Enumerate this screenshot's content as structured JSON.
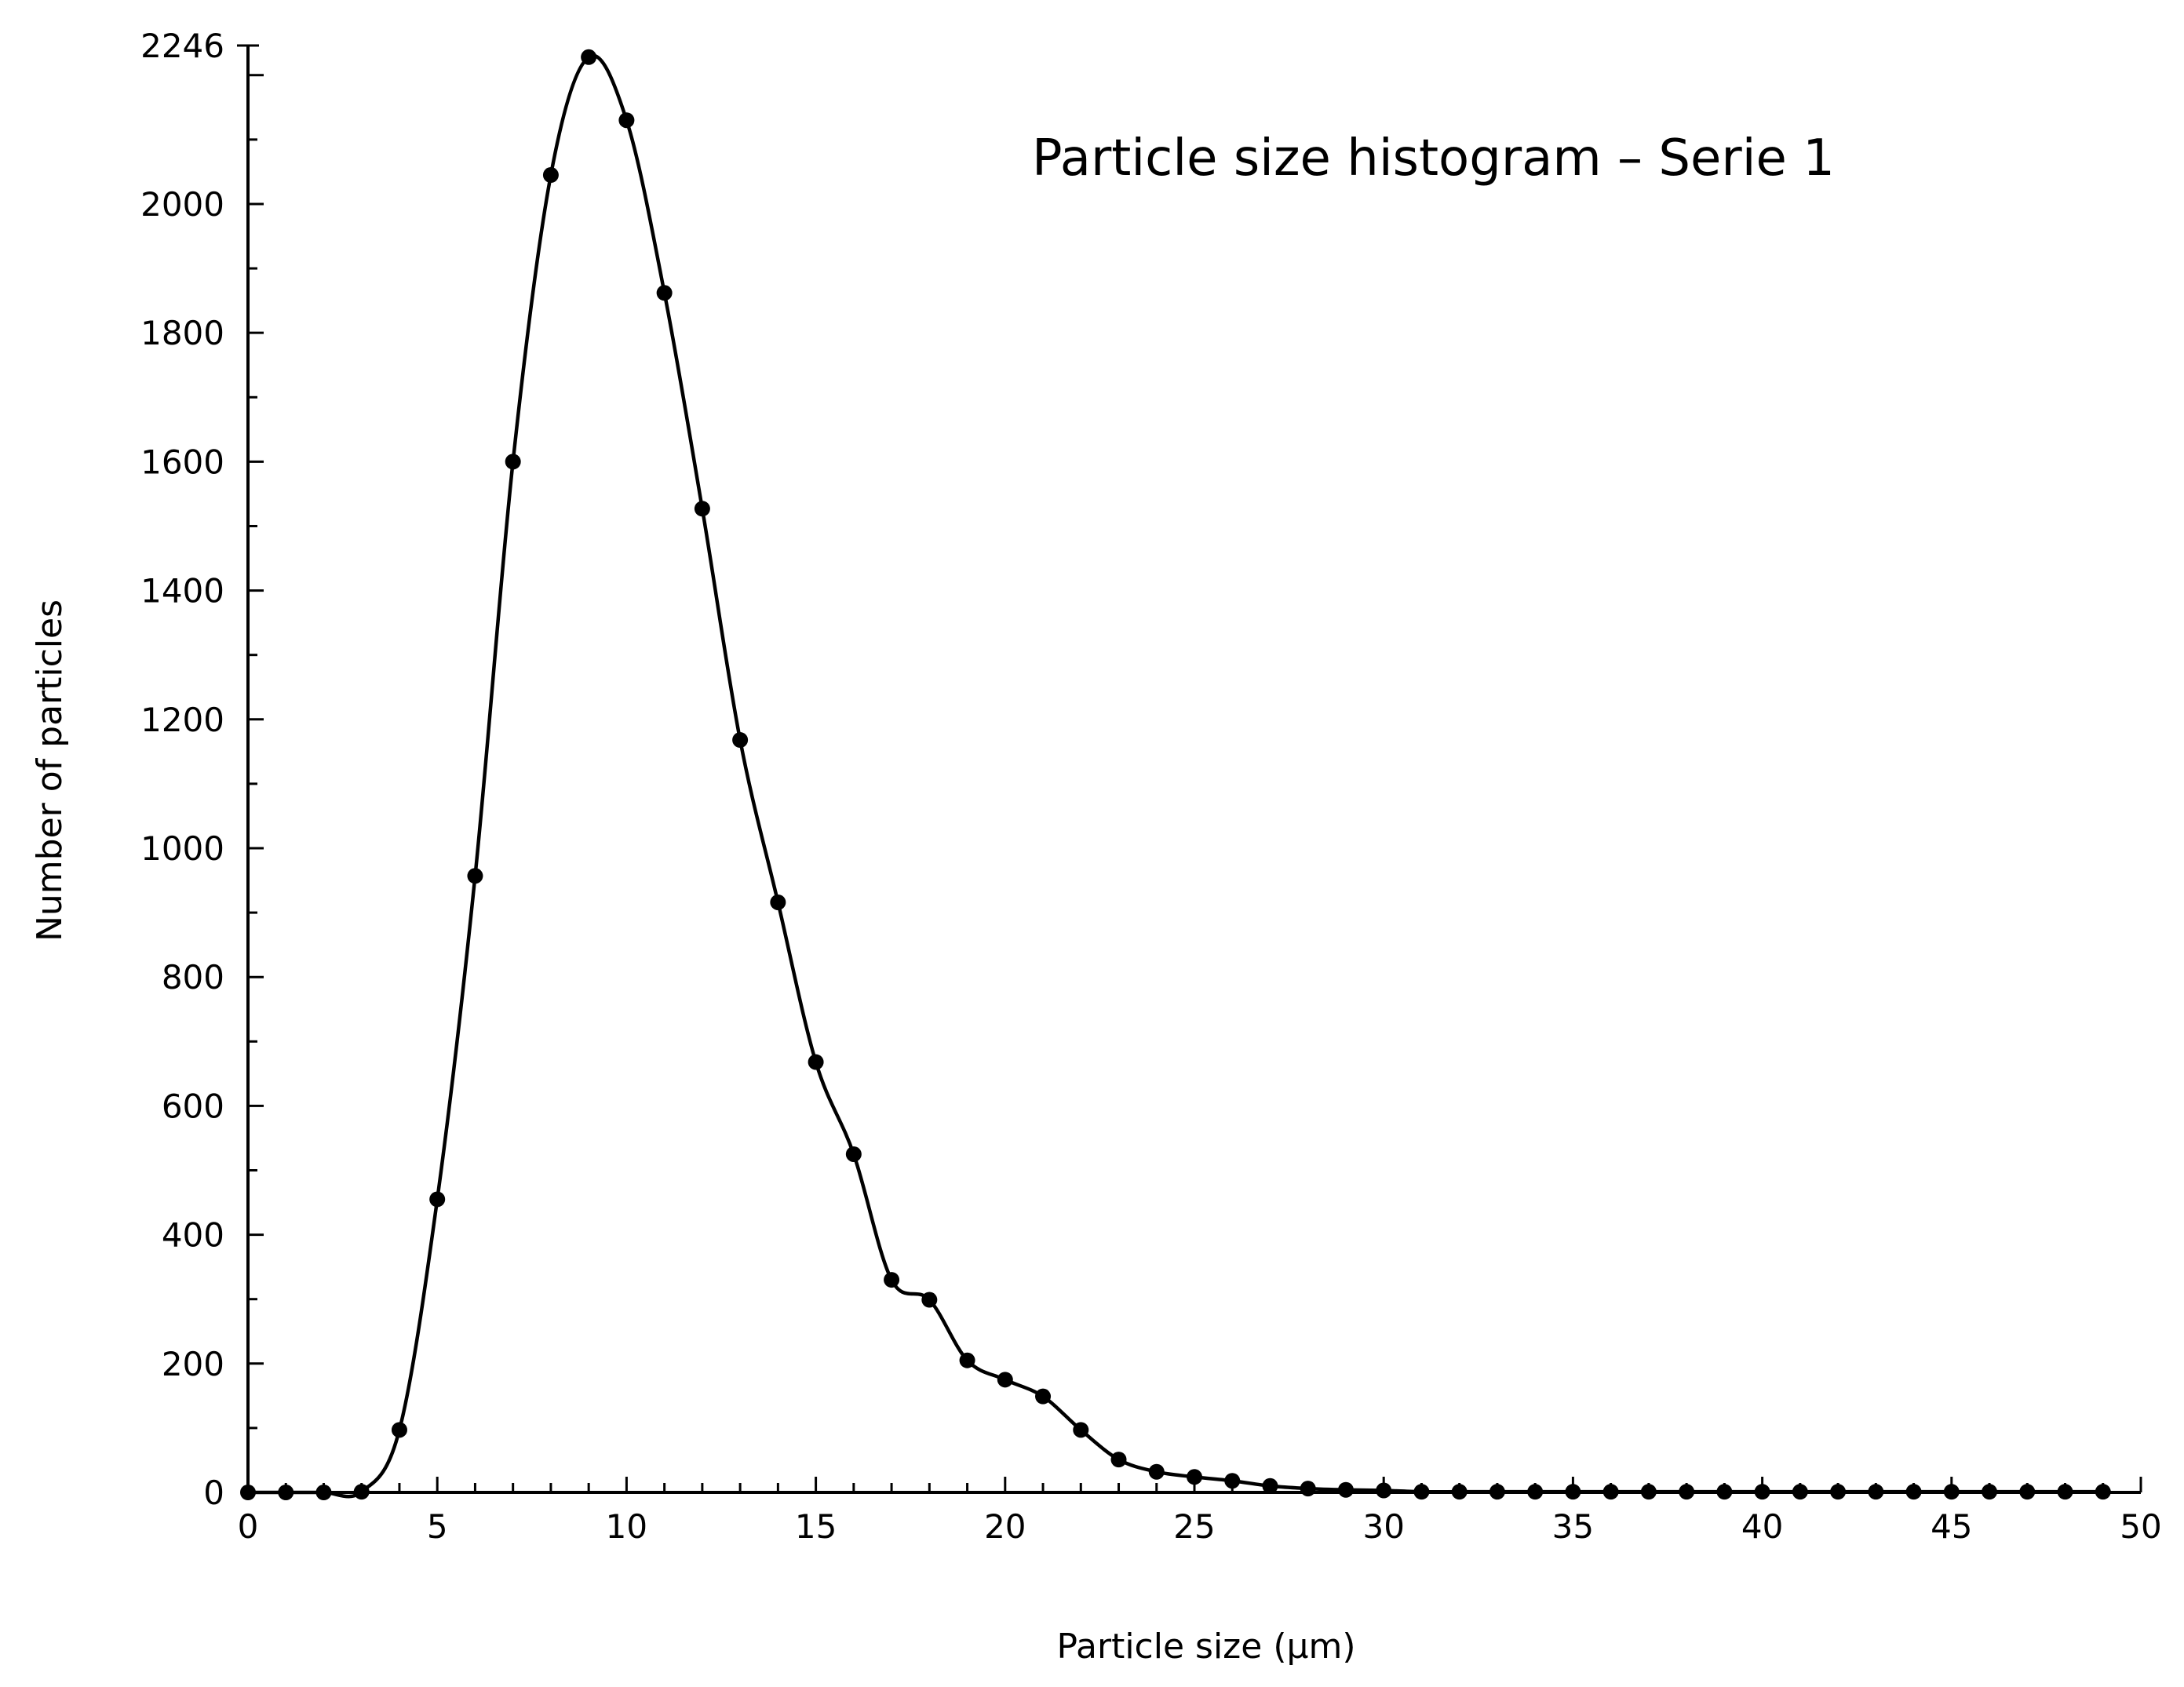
{
  "chart_data": {
    "type": "line",
    "title": "Particle size histogram – Serie 1",
    "xlabel": "Particle size (μm)",
    "ylabel": "Number of particles",
    "xlim": [
      0,
      50
    ],
    "ylim": [
      0,
      2246
    ],
    "x_ticks": [
      0,
      5,
      10,
      15,
      20,
      25,
      30,
      35,
      40,
      45,
      50
    ],
    "y_ticks": [
      0,
      200,
      400,
      600,
      800,
      1000,
      1200,
      1400,
      1600,
      1800,
      2000,
      2246
    ],
    "grid": false,
    "line_color": "#000000",
    "marker_color": "#000000",
    "marker": "circle",
    "smooth": true,
    "series": [
      {
        "x": [
          0,
          1,
          2,
          3,
          4,
          5,
          6,
          7,
          8,
          9,
          10,
          11,
          12,
          13,
          14,
          15,
          16,
          17,
          18,
          19,
          20,
          21,
          22,
          23,
          24,
          25,
          26,
          27,
          28,
          29,
          30,
          31,
          32,
          33,
          34,
          35,
          36,
          37,
          38,
          39,
          40,
          41,
          42,
          43,
          44,
          45,
          46,
          47,
          48,
          49
        ],
        "y": [
          0,
          0,
          0,
          1,
          97,
          455,
          957,
          1600,
          2045,
          2228,
          2130,
          1862,
          1527,
          1168,
          916,
          668,
          525,
          330,
          299,
          205,
          175,
          149,
          97,
          51,
          32,
          24,
          18,
          10,
          6,
          4,
          3,
          1,
          1,
          1,
          1,
          1,
          1,
          1,
          1,
          1,
          1,
          1,
          1,
          1,
          1,
          1,
          1,
          1,
          1,
          1
        ]
      }
    ]
  }
}
